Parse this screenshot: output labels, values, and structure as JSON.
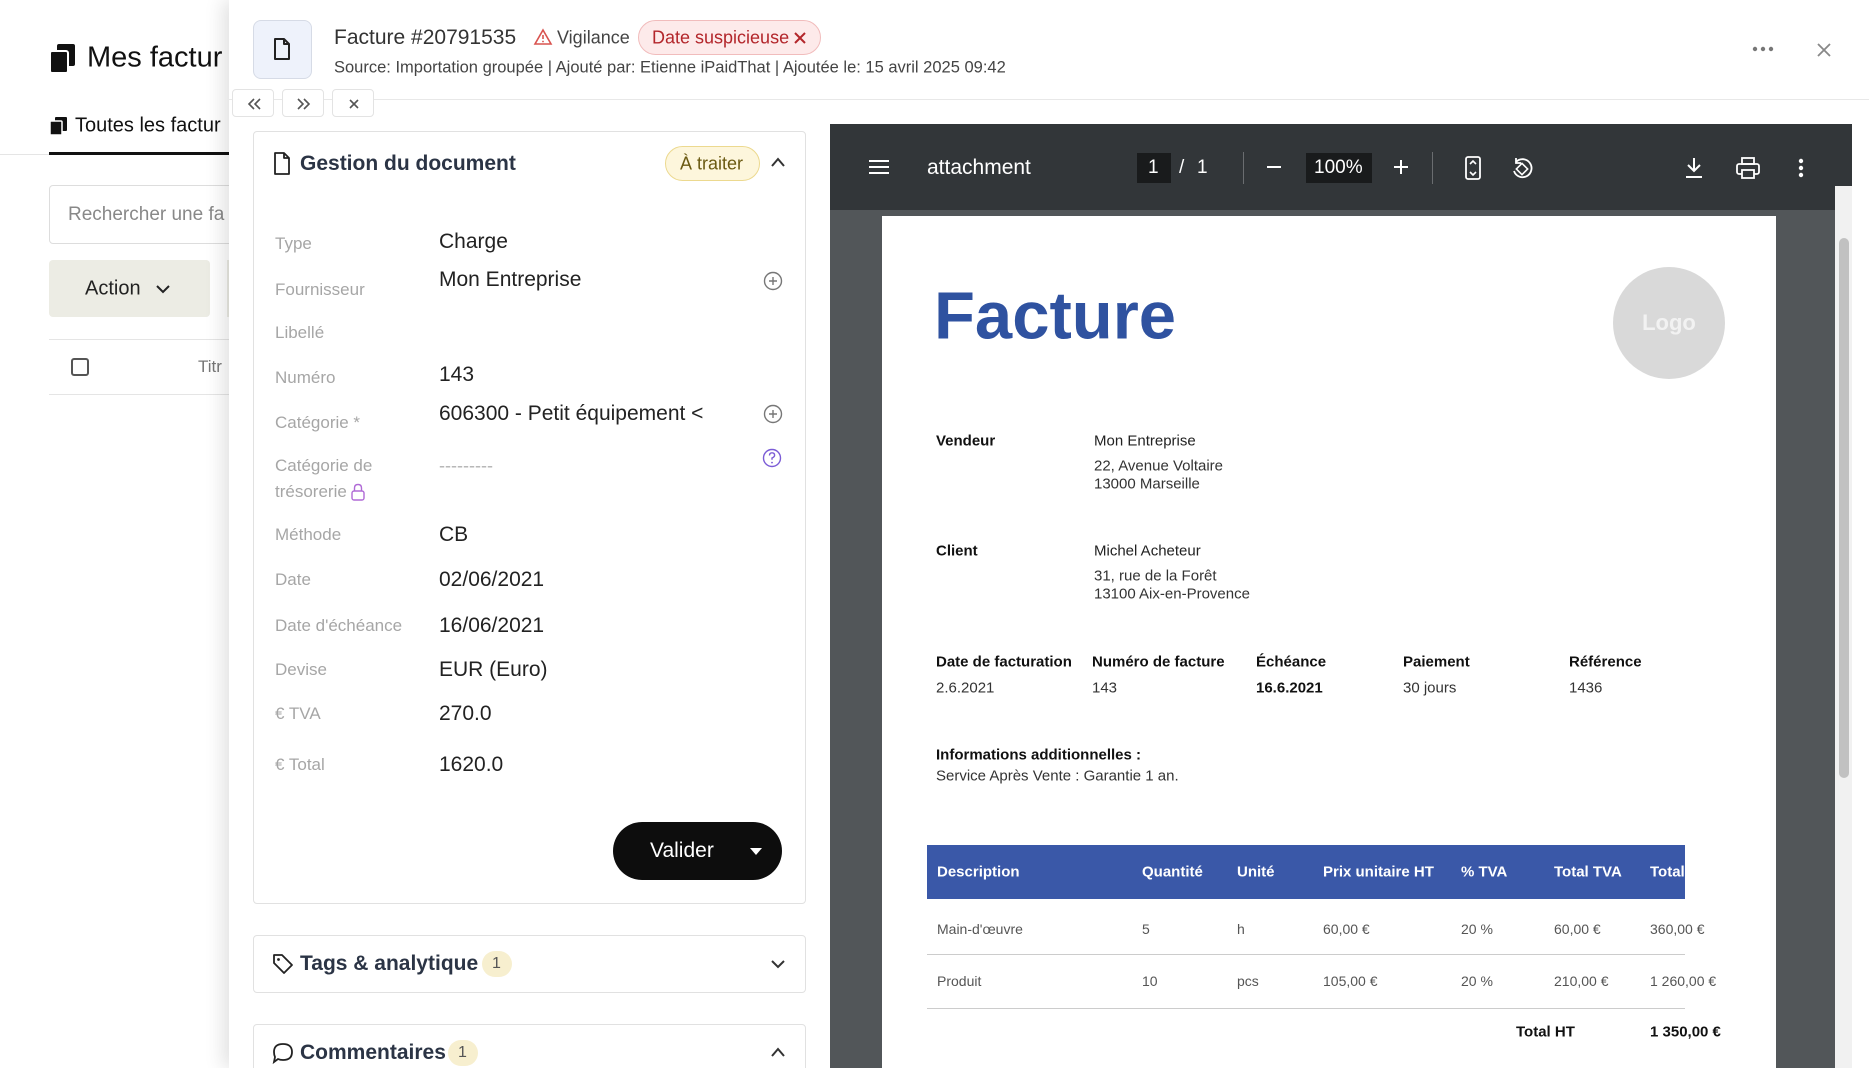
{
  "background": {
    "title": "Mes factur",
    "tab": "Toutes les factur",
    "search_placeholder": "Rechercher une fa",
    "action_button": "Action",
    "column_title": "Titr"
  },
  "header": {
    "title": "Facture #20791535",
    "vigilance": "Vigilance",
    "flag": "Date suspicieuse",
    "source": "Source:  Importation groupée | Ajouté par: Etienne iPaidThat | Ajoutée le: 15 avril 2025 09:42"
  },
  "document_panel": {
    "title": "Gestion du document",
    "status": "À traiter",
    "fields": [
      {
        "label": "Type",
        "value": "Charge"
      },
      {
        "label": "Fournisseur",
        "value": "Mon Entreprise"
      },
      {
        "label": "Libellé"
      },
      {
        "label": "Numéro",
        "value": "143"
      },
      {
        "label": "Catégorie *",
        "value": "606300 - Petit équipement <"
      },
      {
        "label": "Catégorie de trésorerie",
        "value": "---------"
      },
      {
        "label": "Méthode",
        "value": "CB"
      },
      {
        "label": "Date",
        "value": "02/06/2021"
      },
      {
        "label": "Date d'échéance",
        "value": "16/06/2021"
      },
      {
        "label": "Devise",
        "value": "EUR (Euro)"
      },
      {
        "label": "€  TVA",
        "value": "270.0"
      },
      {
        "label": "€  Total",
        "value": "1620.0"
      }
    ],
    "button": "Valider"
  },
  "tags": {
    "title": "Tags & analytique",
    "count": "1"
  },
  "comments": {
    "title": "Commentaires",
    "count": "1"
  },
  "viewer": {
    "filename": "attachment",
    "page": "1",
    "separator": "/",
    "total_pages": "1",
    "zoom": "100%"
  },
  "invoice": {
    "title": "Facture",
    "logo": "Logo",
    "seller": {
      "label": "Vendeur",
      "name": "Mon Entreprise",
      "lines": [
        "22, Avenue Voltaire",
        "13000 Marseille"
      ]
    },
    "client": {
      "label": "Client",
      "name": "Michel Acheteur",
      "lines": [
        "31, rue de la Forêt",
        "13100 Aix-en-Provence"
      ]
    },
    "details": [
      {
        "label": "Date de facturation",
        "value": "2.6.2021"
      },
      {
        "label": "Numéro de facture",
        "value": "143"
      },
      {
        "label": "Échéance",
        "value": "16.6.2021"
      },
      {
        "label": "Paiement",
        "value": "30 jours"
      },
      {
        "label": "Référence",
        "value": "1436"
      }
    ],
    "notes": {
      "label": "Informations additionnelles :",
      "text": "Service Après Vente : Garantie 1 an."
    },
    "table": {
      "columns": [
        "Description",
        "Quantité",
        "Unité",
        "Prix unitaire HT",
        "% TVA",
        "Total TVA",
        "Total TTC"
      ],
      "rows": [
        [
          "Main-d'œuvre",
          "5",
          "h",
          "60,00 €",
          "20 %",
          "60,00 €",
          "360,00 €"
        ],
        [
          "Produit",
          "10",
          "pcs",
          "105,00 €",
          "20 %",
          "210,00 €",
          "1 260,00 €"
        ]
      ]
    },
    "total": {
      "label": "Total HT",
      "value": "1 350,00 €"
    }
  }
}
